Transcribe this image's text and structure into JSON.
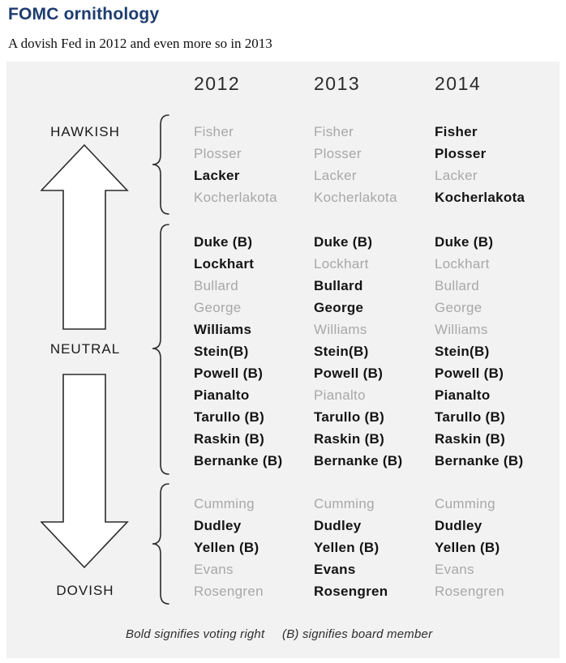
{
  "header": {
    "title": "FOMC ornithology",
    "subtitle": "A dovish Fed in 2012 and even more so in 2013"
  },
  "chart": {
    "years": [
      "2012",
      "2013",
      "2014"
    ],
    "axis_labels": {
      "top": "HAWKISH",
      "middle": "NEUTRAL",
      "bottom": "DOVISH"
    },
    "groups": [
      {
        "stance": "hawkish",
        "members": [
          {
            "name": "Fisher",
            "bold_by_year": [
              false,
              false,
              true
            ]
          },
          {
            "name": "Plosser",
            "bold_by_year": [
              false,
              false,
              true
            ]
          },
          {
            "name": "Lacker",
            "bold_by_year": [
              true,
              false,
              false
            ]
          },
          {
            "name": "Kocherlakota",
            "bold_by_year": [
              false,
              false,
              true
            ]
          }
        ]
      },
      {
        "stance": "neutral",
        "members": [
          {
            "name": "Duke (B)",
            "bold_by_year": [
              true,
              true,
              true
            ]
          },
          {
            "name": "Lockhart",
            "bold_by_year": [
              true,
              false,
              false
            ]
          },
          {
            "name": "Bullard",
            "bold_by_year": [
              false,
              true,
              false
            ]
          },
          {
            "name": "George",
            "bold_by_year": [
              false,
              true,
              false
            ]
          },
          {
            "name": "Williams",
            "bold_by_year": [
              true,
              false,
              false
            ]
          },
          {
            "name": "Stein(B)",
            "bold_by_year": [
              true,
              true,
              true
            ]
          },
          {
            "name": "Powell (B)",
            "bold_by_year": [
              true,
              true,
              true
            ]
          },
          {
            "name": "Pianalto",
            "bold_by_year": [
              true,
              false,
              true
            ]
          },
          {
            "name": "Tarullo (B)",
            "bold_by_year": [
              true,
              true,
              true
            ]
          },
          {
            "name": "Raskin (B)",
            "bold_by_year": [
              true,
              true,
              true
            ]
          },
          {
            "name": "Bernanke (B)",
            "bold_by_year": [
              true,
              true,
              true
            ]
          }
        ]
      },
      {
        "stance": "dovish",
        "members": [
          {
            "name": "Cumming",
            "bold_by_year": [
              false,
              false,
              false
            ]
          },
          {
            "name": "Dudley",
            "bold_by_year": [
              true,
              true,
              true
            ]
          },
          {
            "name": "Yellen (B)",
            "bold_by_year": [
              true,
              true,
              true
            ]
          },
          {
            "name": "Evans",
            "bold_by_year": [
              false,
              true,
              false
            ]
          },
          {
            "name": "Rosengren",
            "bold_by_year": [
              false,
              true,
              false
            ]
          }
        ]
      }
    ],
    "legend": {
      "bold_note": "Bold signifies voting right",
      "board_note": "(B) signifies board member"
    },
    "colors": {
      "title": "#1d3c6e",
      "panel_bg": "#f2f2f2",
      "voting_member": "#141414",
      "non_voting_member": "#a8a8a8"
    }
  }
}
